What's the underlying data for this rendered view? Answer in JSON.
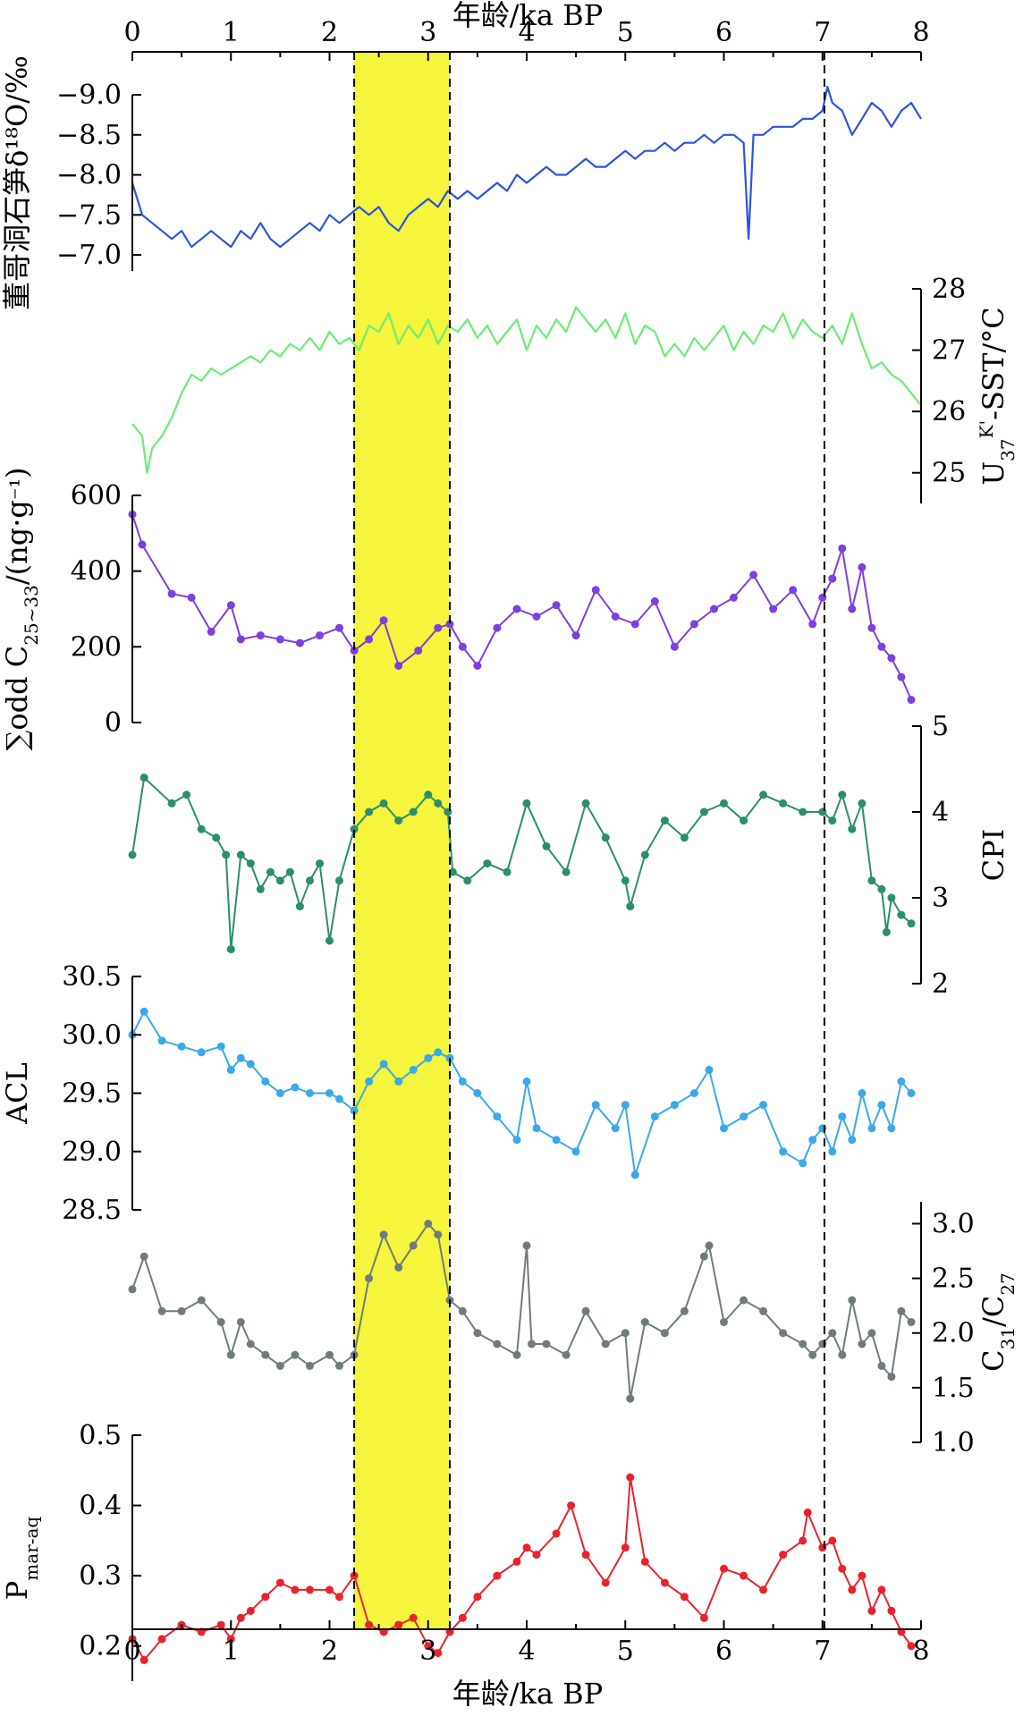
{
  "chart_data": {
    "type": "line",
    "x_axis": {
      "label_top": "年龄/ka BP",
      "label_bottom": "年龄/ka BP",
      "range": [
        0,
        8
      ],
      "ticks": [
        "0",
        "1",
        "2",
        "3",
        "4",
        "5",
        "6",
        "7",
        "8"
      ]
    },
    "highlight_band": {
      "from": 2.25,
      "to": 3.22,
      "color": "#f4f53c"
    },
    "dashed_lines": [
      2.25,
      3.22,
      7.02
    ],
    "panels": [
      {
        "id": "d18o",
        "ylabel": "董哥洞石笋δ¹⁸O/‰",
        "side": "left",
        "reversed": true,
        "ylim": [
          -9.0,
          -6.8
        ],
        "yticks": [
          "-9.0",
          "-8.5",
          "-8.0",
          "-7.5",
          "-7.0"
        ],
        "color": "#2c54e0",
        "markers": false,
        "x": [
          0,
          0.1,
          0.2,
          0.3,
          0.4,
          0.5,
          0.6,
          0.7,
          0.8,
          0.9,
          1.0,
          1.1,
          1.2,
          1.3,
          1.4,
          1.5,
          1.6,
          1.7,
          1.8,
          1.9,
          2.0,
          2.1,
          2.2,
          2.3,
          2.4,
          2.5,
          2.6,
          2.7,
          2.8,
          2.9,
          3.0,
          3.1,
          3.2,
          3.3,
          3.4,
          3.5,
          3.6,
          3.7,
          3.8,
          3.9,
          4.0,
          4.1,
          4.2,
          4.3,
          4.4,
          4.5,
          4.6,
          4.7,
          4.8,
          4.9,
          5.0,
          5.1,
          5.2,
          5.3,
          5.4,
          5.5,
          5.6,
          5.7,
          5.8,
          5.9,
          6.0,
          6.1,
          6.2,
          6.25,
          6.3,
          6.4,
          6.5,
          6.6,
          6.7,
          6.8,
          6.9,
          7.0,
          7.05,
          7.1,
          7.2,
          7.3,
          7.4,
          7.5,
          7.6,
          7.7,
          7.8,
          7.9,
          8.0
        ],
        "y": [
          -7.9,
          -7.5,
          -7.4,
          -7.3,
          -7.2,
          -7.3,
          -7.1,
          -7.2,
          -7.3,
          -7.2,
          -7.1,
          -7.3,
          -7.2,
          -7.4,
          -7.2,
          -7.1,
          -7.2,
          -7.3,
          -7.4,
          -7.3,
          -7.5,
          -7.4,
          -7.5,
          -7.6,
          -7.5,
          -7.6,
          -7.4,
          -7.3,
          -7.5,
          -7.6,
          -7.7,
          -7.6,
          -7.8,
          -7.7,
          -7.8,
          -7.7,
          -7.8,
          -7.9,
          -7.8,
          -8.0,
          -7.9,
          -8.0,
          -8.1,
          -8.0,
          -8.0,
          -8.1,
          -8.2,
          -8.1,
          -8.1,
          -8.2,
          -8.3,
          -8.2,
          -8.3,
          -8.3,
          -8.4,
          -8.3,
          -8.4,
          -8.4,
          -8.5,
          -8.4,
          -8.5,
          -8.5,
          -8.4,
          -7.2,
          -8.5,
          -8.5,
          -8.6,
          -8.6,
          -8.6,
          -8.7,
          -8.7,
          -8.8,
          -9.1,
          -8.9,
          -8.8,
          -8.5,
          -8.7,
          -8.9,
          -8.8,
          -8.6,
          -8.8,
          -8.9,
          -8.7
        ]
      },
      {
        "id": "sst",
        "ylabel": "U37K'-SST/°C",
        "side": "right",
        "reversed": false,
        "ylim": [
          24.5,
          28
        ],
        "yticks": [
          "25",
          "26",
          "27",
          "28"
        ],
        "color": "#6cec74",
        "markers": false,
        "x": [
          0,
          0.1,
          0.15,
          0.2,
          0.3,
          0.4,
          0.5,
          0.6,
          0.7,
          0.8,
          0.9,
          1.0,
          1.1,
          1.2,
          1.3,
          1.4,
          1.5,
          1.6,
          1.7,
          1.8,
          1.9,
          2.0,
          2.1,
          2.2,
          2.3,
          2.4,
          2.5,
          2.6,
          2.7,
          2.8,
          2.9,
          3.0,
          3.1,
          3.2,
          3.3,
          3.4,
          3.5,
          3.6,
          3.7,
          3.8,
          3.9,
          4.0,
          4.1,
          4.2,
          4.3,
          4.4,
          4.5,
          4.6,
          4.7,
          4.8,
          4.9,
          5.0,
          5.1,
          5.2,
          5.3,
          5.4,
          5.5,
          5.6,
          5.7,
          5.8,
          5.9,
          6.0,
          6.1,
          6.2,
          6.3,
          6.4,
          6.5,
          6.6,
          6.7,
          6.8,
          6.9,
          7.0,
          7.1,
          7.2,
          7.3,
          7.4,
          7.5,
          7.6,
          7.7,
          7.8,
          7.9,
          8.0
        ],
        "y": [
          25.8,
          25.6,
          25.0,
          25.4,
          25.6,
          25.9,
          26.3,
          26.6,
          26.5,
          26.7,
          26.6,
          26.7,
          26.8,
          26.9,
          26.8,
          27.0,
          26.9,
          27.1,
          27.0,
          27.2,
          27.0,
          27.3,
          27.1,
          27.2,
          27.0,
          27.4,
          27.3,
          27.6,
          27.1,
          27.4,
          27.2,
          27.5,
          27.1,
          27.4,
          27.3,
          27.5,
          27.2,
          27.4,
          27.1,
          27.3,
          27.5,
          27.0,
          27.4,
          27.2,
          27.5,
          27.3,
          27.7,
          27.5,
          27.3,
          27.5,
          27.2,
          27.6,
          27.1,
          27.4,
          27.3,
          26.9,
          27.1,
          26.9,
          27.2,
          27.0,
          27.2,
          27.4,
          27.0,
          27.3,
          27.1,
          27.4,
          27.3,
          27.6,
          27.2,
          27.5,
          27.3,
          27.2,
          27.4,
          27.1,
          27.6,
          27.1,
          26.7,
          26.8,
          26.6,
          26.5,
          26.3,
          26.1
        ]
      },
      {
        "id": "odd",
        "ylabel": "∑odd C25~33/(ng·g⁻¹)",
        "side": "left",
        "reversed": false,
        "ylim": [
          0,
          600
        ],
        "yticks": [
          "0",
          "200",
          "400",
          "600"
        ],
        "color": "#7d3fe0",
        "markers": true,
        "x": [
          0,
          0.1,
          0.4,
          0.6,
          0.8,
          1.0,
          1.1,
          1.3,
          1.5,
          1.7,
          1.9,
          2.1,
          2.25,
          2.4,
          2.55,
          2.7,
          2.9,
          3.1,
          3.22,
          3.35,
          3.5,
          3.7,
          3.9,
          4.1,
          4.3,
          4.5,
          4.7,
          4.9,
          5.1,
          5.3,
          5.5,
          5.7,
          5.9,
          6.1,
          6.3,
          6.5,
          6.7,
          6.9,
          7.0,
          7.1,
          7.2,
          7.3,
          7.4,
          7.5,
          7.6,
          7.7,
          7.8,
          7.9
        ],
        "y": [
          550,
          470,
          340,
          330,
          240,
          310,
          220,
          230,
          220,
          210,
          230,
          250,
          190,
          220,
          270,
          150,
          190,
          250,
          260,
          200,
          150,
          250,
          300,
          280,
          310,
          230,
          350,
          280,
          260,
          320,
          200,
          260,
          300,
          330,
          390,
          300,
          350,
          260,
          330,
          380,
          460,
          300,
          410,
          250,
          200,
          170,
          120,
          60
        ]
      },
      {
        "id": "cpi",
        "ylabel": "CPI",
        "side": "right",
        "reversed": false,
        "ylim": [
          2,
          5
        ],
        "yticks": [
          "2",
          "3",
          "4",
          "5"
        ],
        "color": "#2b8e6c",
        "markers": true,
        "x": [
          0,
          0.12,
          0.4,
          0.55,
          0.7,
          0.85,
          0.95,
          1.0,
          1.1,
          1.2,
          1.3,
          1.4,
          1.5,
          1.6,
          1.7,
          1.8,
          1.9,
          2.0,
          2.1,
          2.25,
          2.4,
          2.55,
          2.7,
          2.85,
          3.0,
          3.1,
          3.2,
          3.25,
          3.4,
          3.6,
          3.8,
          4.0,
          4.2,
          4.4,
          4.6,
          4.8,
          5.0,
          5.05,
          5.2,
          5.4,
          5.6,
          5.8,
          6.0,
          6.2,
          6.4,
          6.6,
          6.8,
          7.0,
          7.1,
          7.2,
          7.3,
          7.4,
          7.5,
          7.6,
          7.65,
          7.7,
          7.8,
          7.9
        ],
        "y": [
          3.5,
          4.4,
          4.1,
          4.2,
          3.8,
          3.7,
          3.5,
          2.4,
          3.5,
          3.4,
          3.1,
          3.3,
          3.2,
          3.3,
          2.9,
          3.2,
          3.4,
          2.5,
          3.2,
          3.8,
          4.0,
          4.1,
          3.9,
          4.0,
          4.2,
          4.1,
          4.0,
          3.3,
          3.2,
          3.4,
          3.3,
          4.1,
          3.6,
          3.3,
          4.1,
          3.7,
          3.2,
          2.9,
          3.5,
          3.9,
          3.7,
          4.0,
          4.1,
          3.9,
          4.2,
          4.1,
          4.0,
          4.0,
          3.9,
          4.2,
          3.8,
          4.1,
          3.2,
          3.1,
          2.6,
          3.0,
          2.8,
          2.7
        ]
      },
      {
        "id": "acl",
        "ylabel": "ACL",
        "side": "left",
        "reversed": false,
        "ylim": [
          28.5,
          30.5
        ],
        "yticks": [
          "28.5",
          "29.0",
          "29.5",
          "30.0",
          "30.5"
        ],
        "color": "#3aa9e8",
        "markers": true,
        "x": [
          0,
          0.12,
          0.3,
          0.5,
          0.7,
          0.9,
          1.0,
          1.1,
          1.2,
          1.35,
          1.5,
          1.65,
          1.8,
          2.0,
          2.1,
          2.25,
          2.4,
          2.55,
          2.7,
          2.85,
          3.0,
          3.1,
          3.22,
          3.35,
          3.5,
          3.7,
          3.9,
          4.0,
          4.1,
          4.3,
          4.5,
          4.7,
          4.9,
          5.0,
          5.1,
          5.3,
          5.5,
          5.7,
          5.85,
          6.0,
          6.2,
          6.4,
          6.6,
          6.8,
          6.9,
          7.0,
          7.1,
          7.2,
          7.3,
          7.4,
          7.5,
          7.6,
          7.7,
          7.8,
          7.9
        ],
        "y": [
          30.0,
          30.2,
          29.95,
          29.9,
          29.85,
          29.9,
          29.7,
          29.8,
          29.75,
          29.6,
          29.5,
          29.55,
          29.5,
          29.5,
          29.45,
          29.35,
          29.6,
          29.75,
          29.6,
          29.7,
          29.8,
          29.85,
          29.8,
          29.6,
          29.5,
          29.3,
          29.1,
          29.6,
          29.2,
          29.1,
          29.0,
          29.4,
          29.2,
          29.4,
          28.8,
          29.3,
          29.4,
          29.5,
          29.7,
          29.2,
          29.3,
          29.4,
          29.0,
          28.9,
          29.1,
          29.2,
          29.0,
          29.3,
          29.1,
          29.5,
          29.2,
          29.4,
          29.2,
          29.6,
          29.5
        ]
      },
      {
        "id": "c31c27",
        "ylabel": "C31/C27",
        "side": "right",
        "reversed": false,
        "ylim": [
          1.0,
          3.2
        ],
        "yticks": [
          "1.0",
          "1.5",
          "2.0",
          "2.5",
          "3.0"
        ],
        "color": "#707b7e",
        "markers": true,
        "x": [
          0,
          0.12,
          0.3,
          0.5,
          0.7,
          0.9,
          1.0,
          1.1,
          1.2,
          1.35,
          1.5,
          1.65,
          1.8,
          2.0,
          2.1,
          2.25,
          2.4,
          2.55,
          2.7,
          2.85,
          3.0,
          3.1,
          3.22,
          3.35,
          3.5,
          3.7,
          3.9,
          4.0,
          4.05,
          4.2,
          4.4,
          4.6,
          4.8,
          5.0,
          5.05,
          5.2,
          5.4,
          5.6,
          5.8,
          5.85,
          6.0,
          6.2,
          6.4,
          6.6,
          6.8,
          6.9,
          7.0,
          7.1,
          7.2,
          7.3,
          7.4,
          7.5,
          7.6,
          7.7,
          7.8,
          7.9
        ],
        "y": [
          2.4,
          2.7,
          2.2,
          2.2,
          2.3,
          2.1,
          1.8,
          2.1,
          1.9,
          1.8,
          1.7,
          1.8,
          1.7,
          1.8,
          1.7,
          1.8,
          2.5,
          2.9,
          2.6,
          2.8,
          3.0,
          2.9,
          2.3,
          2.2,
          2.0,
          1.9,
          1.8,
          2.8,
          1.9,
          1.9,
          1.8,
          2.2,
          1.9,
          2.0,
          1.4,
          2.1,
          2.0,
          2.2,
          2.7,
          2.8,
          2.1,
          2.3,
          2.2,
          2.0,
          1.9,
          1.8,
          1.9,
          2.0,
          1.8,
          2.3,
          1.9,
          2.0,
          1.7,
          1.6,
          2.2,
          2.1
        ]
      },
      {
        "id": "pmar",
        "ylabel": "Pmar-aq",
        "side": "left",
        "reversed": false,
        "ylim": [
          0.15,
          0.5
        ],
        "yticks": [
          "0.2",
          "0.3",
          "0.4",
          "0.5"
        ],
        "color": "#e8232b",
        "markers": true,
        "x": [
          0,
          0.12,
          0.3,
          0.5,
          0.7,
          0.9,
          1.0,
          1.1,
          1.2,
          1.35,
          1.5,
          1.65,
          1.8,
          2.0,
          2.1,
          2.25,
          2.4,
          2.55,
          2.7,
          2.85,
          3.0,
          3.1,
          3.22,
          3.35,
          3.5,
          3.7,
          3.9,
          4.0,
          4.1,
          4.3,
          4.45,
          4.6,
          4.8,
          5.0,
          5.05,
          5.2,
          5.4,
          5.6,
          5.8,
          6.0,
          6.2,
          6.4,
          6.6,
          6.8,
          6.85,
          7.0,
          7.1,
          7.2,
          7.3,
          7.4,
          7.5,
          7.6,
          7.7,
          7.8,
          7.9
        ],
        "y": [
          0.21,
          0.18,
          0.21,
          0.23,
          0.22,
          0.23,
          0.21,
          0.24,
          0.25,
          0.27,
          0.29,
          0.28,
          0.28,
          0.28,
          0.27,
          0.3,
          0.23,
          0.22,
          0.23,
          0.24,
          0.2,
          0.19,
          0.22,
          0.24,
          0.27,
          0.3,
          0.32,
          0.34,
          0.33,
          0.36,
          0.4,
          0.33,
          0.29,
          0.34,
          0.44,
          0.32,
          0.29,
          0.27,
          0.24,
          0.31,
          0.3,
          0.28,
          0.33,
          0.35,
          0.39,
          0.34,
          0.35,
          0.31,
          0.28,
          0.3,
          0.25,
          0.28,
          0.25,
          0.22,
          0.2
        ]
      }
    ]
  }
}
